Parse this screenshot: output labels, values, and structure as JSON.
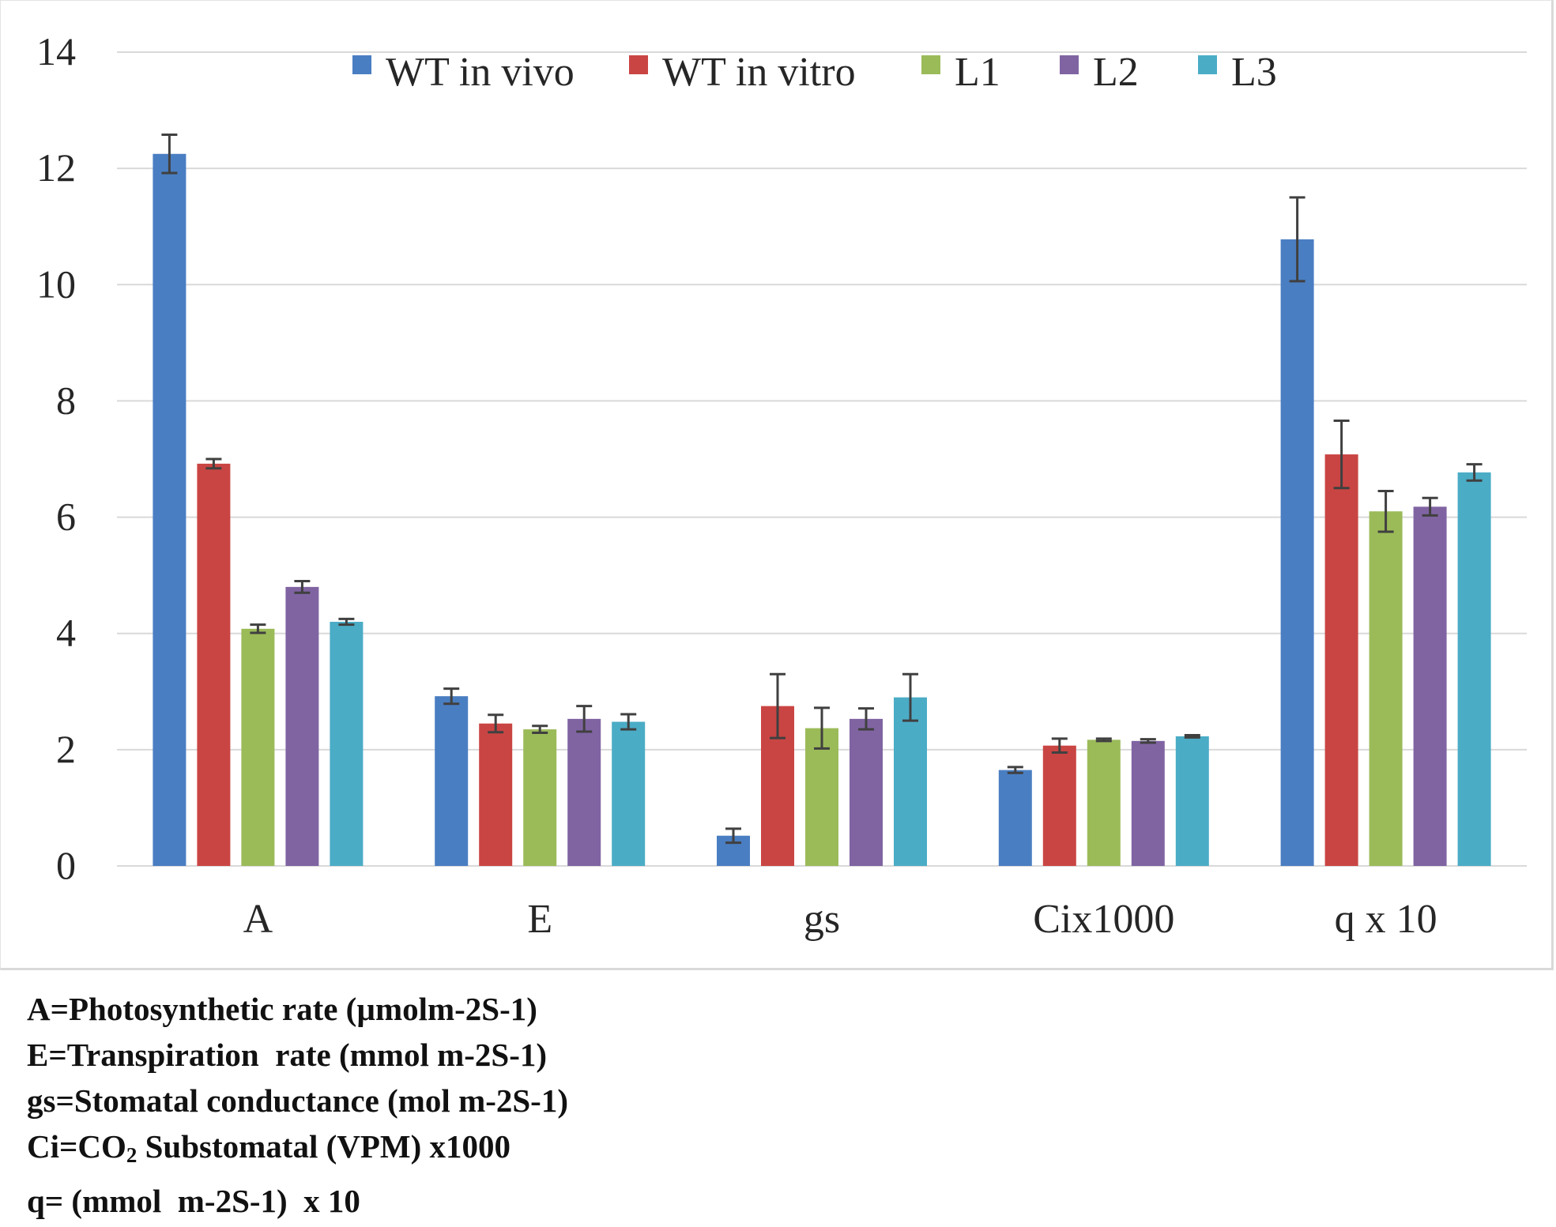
{
  "chart_data": {
    "type": "bar",
    "title": "",
    "xlabel": "",
    "ylabel": "",
    "ylim": [
      0,
      14
    ],
    "yticks": [
      0,
      2,
      4,
      6,
      8,
      10,
      12,
      14
    ],
    "grid": true,
    "legend_position": "top",
    "categories": [
      "A",
      "E",
      "gs",
      "Cix1000",
      "q x 10"
    ],
    "series": [
      {
        "name": "WT in vivo",
        "color": "#4a7ec2",
        "values": [
          12.25,
          2.92,
          0.52,
          1.65,
          10.78
        ],
        "errors": [
          0.33,
          0.13,
          0.12,
          0.05,
          0.72
        ]
      },
      {
        "name": "WT in vitro",
        "color": "#c94543",
        "values": [
          6.92,
          2.45,
          2.75,
          2.07,
          7.08
        ],
        "errors": [
          0.08,
          0.15,
          0.55,
          0.12,
          0.58
        ]
      },
      {
        "name": "L1",
        "color": "#9bbb59",
        "values": [
          4.08,
          2.35,
          2.37,
          2.17,
          6.1
        ],
        "errors": [
          0.07,
          0.06,
          0.35,
          0.02,
          0.35
        ]
      },
      {
        "name": "L2",
        "color": "#8064a2",
        "values": [
          4.8,
          2.53,
          2.53,
          2.15,
          6.18
        ],
        "errors": [
          0.1,
          0.22,
          0.18,
          0.03,
          0.15
        ]
      },
      {
        "name": "L3",
        "color": "#4bacc6",
        "values": [
          4.2,
          2.48,
          2.9,
          2.23,
          6.77
        ],
        "errors": [
          0.05,
          0.13,
          0.4,
          0.02,
          0.14
        ]
      }
    ],
    "axis_color": "#d9d9d9",
    "errorbar_color": "#404040"
  },
  "notes": {
    "line1": "A=Photosynthetic rate (µmolm-2S-1)",
    "line2": "E=Transpiration  rate (mmol m-2S-1)",
    "line3": "gs=Stomatal conductance (mol m-2S-1)",
    "line4_pre": "Ci=CO",
    "line4_sub": "2",
    "line4_post": " Substomatal (VPM) x1000",
    "line5": "q= (mmol  m-2S-1)  x 10"
  }
}
